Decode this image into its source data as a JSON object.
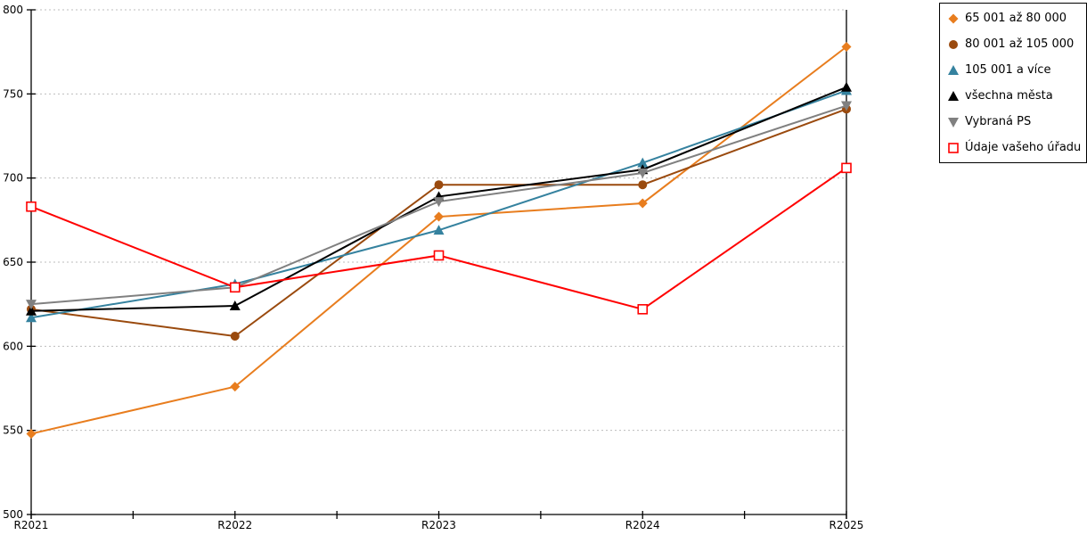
{
  "chart_data": {
    "type": "line",
    "title": "",
    "xlabel": "",
    "ylabel": "",
    "categories": [
      "R2021",
      "R2022",
      "R2023",
      "R2024",
      "R2025"
    ],
    "yticks": [
      800,
      750,
      700,
      650,
      600,
      550,
      500
    ],
    "ylim": [
      500,
      800
    ],
    "grid": "horizontal-dashed",
    "legend_position": "top-right",
    "series": [
      {
        "name": "65 001 až 80 000",
        "color": "#E87D1E",
        "marker": "diamond",
        "values": [
          548,
          576,
          677,
          685,
          778
        ]
      },
      {
        "name": "80 001 až 105 000",
        "color": "#9A4A0E",
        "marker": "circle",
        "values": [
          622,
          606,
          696,
          696,
          741
        ]
      },
      {
        "name": "105 001 a více",
        "color": "#35829F",
        "marker": "triangle-up",
        "values": [
          617,
          637,
          669,
          709,
          752
        ]
      },
      {
        "name": "všechna města",
        "color": "#000000",
        "marker": "triangle-up",
        "values": [
          621,
          624,
          689,
          705,
          754
        ]
      },
      {
        "name": "Vybraná PS",
        "color": "#808080",
        "marker": "triangle-down",
        "values": [
          625,
          635,
          686,
          703,
          743
        ]
      },
      {
        "name": "Údaje vašeho úřadu",
        "color": "#FF0000",
        "marker": "square-open",
        "values": [
          683,
          635,
          654,
          622,
          706
        ]
      }
    ],
    "colors": {
      "axis": "#000000",
      "grid": "#BDBDBD",
      "background": "#FFFFFF",
      "label_text": "#000000"
    }
  }
}
